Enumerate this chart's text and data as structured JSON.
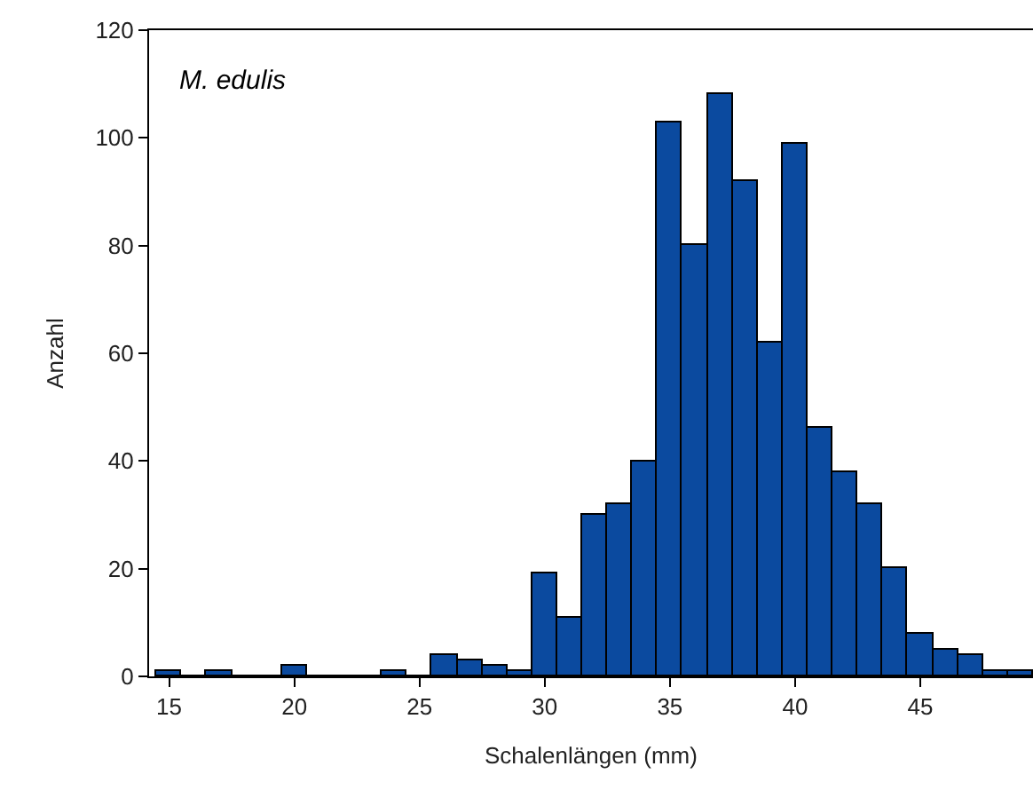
{
  "chart_data": {
    "type": "histogram",
    "xlabel": "Schalenlängen (mm)",
    "ylabel": "Anzahl",
    "annotations": [
      "M. edulis"
    ],
    "bins": [
      14.5,
      15.5,
      16.5,
      17.5,
      18.5,
      19.5,
      20.5,
      21.5,
      22.5,
      23.5,
      24.5,
      25.5,
      26.5,
      27.5,
      28.5,
      29.5,
      30.5,
      31.5,
      32.5,
      33.5,
      34.5,
      35.5,
      36.5,
      37.5,
      38.5,
      39.5,
      40.5,
      41.5,
      42.5,
      43.5,
      44.5,
      45.5,
      46.5,
      47.5,
      48.5,
      49.5
    ],
    "values": [
      1,
      0,
      1,
      0,
      0,
      2,
      0,
      0,
      0,
      1,
      0,
      4,
      3,
      2,
      1,
      19,
      11,
      30,
      32,
      40,
      103,
      80,
      108,
      92,
      62,
      99,
      46,
      38,
      32,
      20,
      8,
      5,
      4,
      1,
      1
    ],
    "color": "#0b4a9f",
    "xlim": [
      14.2,
      49.5
    ],
    "xticks": [
      15,
      20,
      25,
      30,
      35,
      40,
      45
    ],
    "ylim": [
      0,
      120
    ],
    "yticks": [
      0,
      20,
      40,
      60,
      80,
      100,
      120
    ],
    "grid": false
  }
}
